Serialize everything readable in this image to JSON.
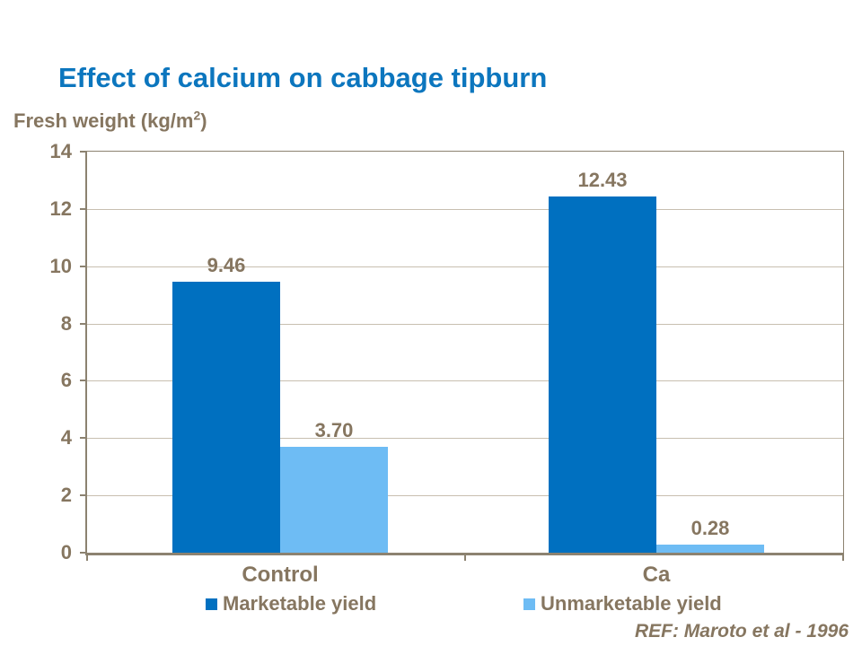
{
  "slide": {
    "title": "Effect of calcium on cabbage tipburn",
    "ref": "REF: Maroto et al - 1996"
  },
  "axis_title": {
    "prefix": "Fresh weight (kg/m",
    "sup": "2",
    "suffix": ")"
  },
  "colors": {
    "title_blue": "#0C76BE",
    "text_brown": "#867660",
    "gridline": "#C8BFB0",
    "axis_line": "#8C8270",
    "marketable_blue": "#0070C0",
    "unmarketable_blue": "#6EBCF4",
    "background": "#FFFFFF"
  },
  "chart_data": {
    "type": "bar",
    "title": "Effect of calcium on cabbage tipburn",
    "ylabel": "Fresh weight (kg/m2)",
    "xlabel": "",
    "categories": [
      "Control",
      "Ca"
    ],
    "series": [
      {
        "name": "Marketable yield",
        "color": "#0070C0",
        "values": [
          9.46,
          12.43
        ],
        "labels": [
          "9.46",
          "12.43"
        ]
      },
      {
        "name": "Unmarketable yield",
        "color": "#6EBCF4",
        "values": [
          3.7,
          0.28
        ],
        "labels": [
          "3.70",
          "0.28"
        ]
      }
    ],
    "ylim": [
      0,
      14
    ],
    "yticks": [
      0,
      2,
      4,
      6,
      8,
      10,
      12,
      14
    ],
    "grid": true,
    "legend_position": "bottom"
  }
}
